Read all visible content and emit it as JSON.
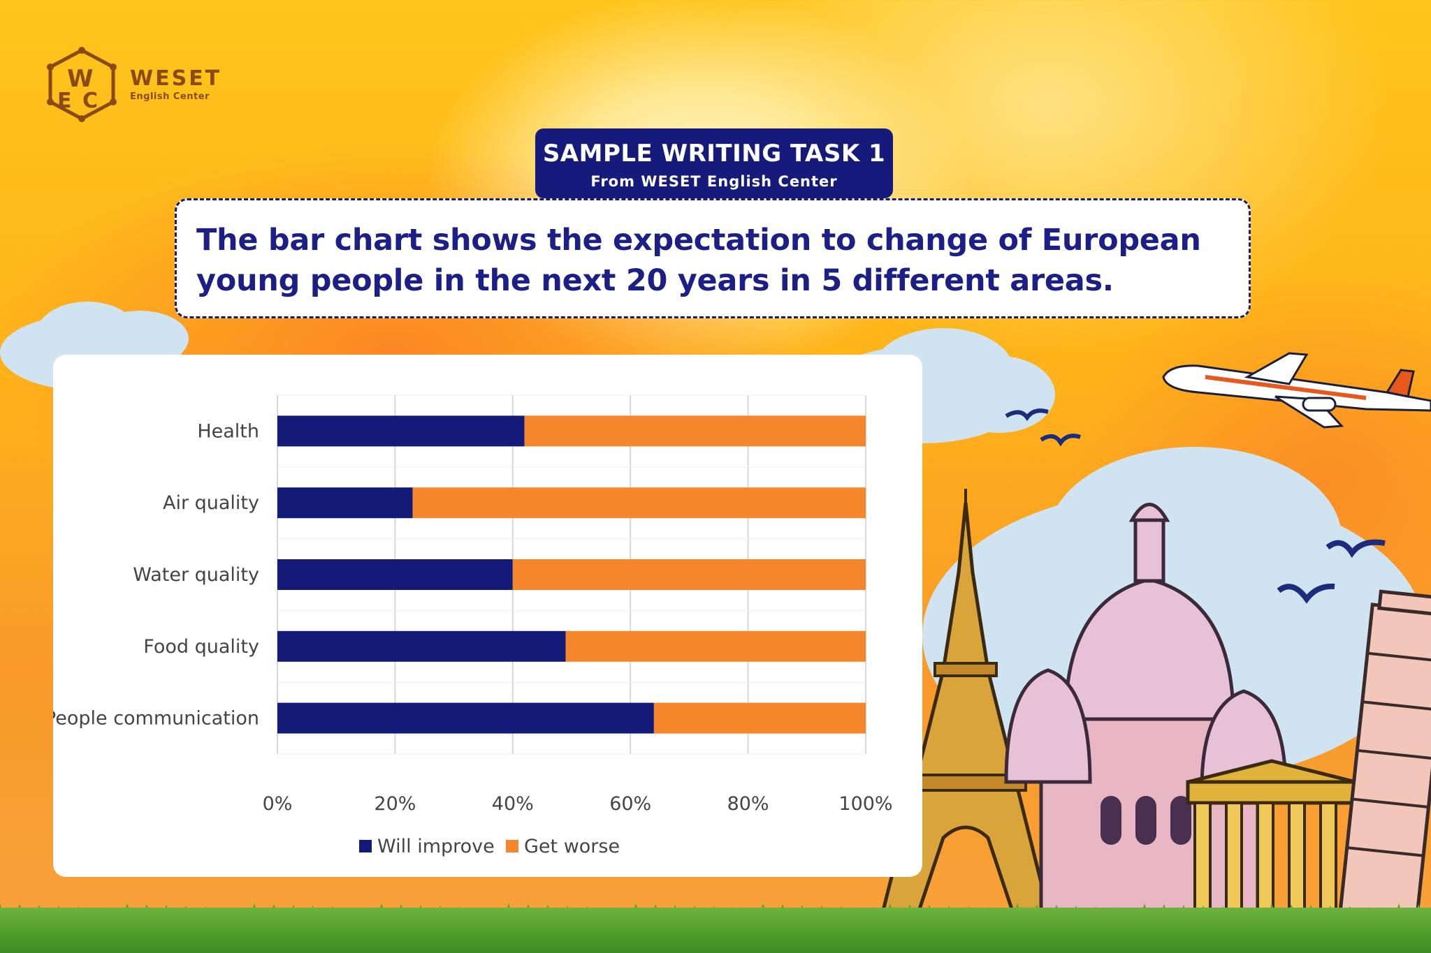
{
  "brand": {
    "name": "WESET",
    "subtitle": "English Center"
  },
  "badge": {
    "title": "SAMPLE WRITING TASK 1",
    "subtitle": "From WESET English Center"
  },
  "prompt": {
    "text": "The bar chart shows the expectation to change of European\nyoung people  in the next 20 years in 5 different areas."
  },
  "colors": {
    "will_improve": "#141a78",
    "get_worse": "#f5862b",
    "badge_bg": "#161a7a",
    "prompt_text": "#1b1f86"
  },
  "chart_data": {
    "type": "bar",
    "orientation": "horizontal",
    "stacked": true,
    "title": "",
    "xlabel": "",
    "ylabel": "",
    "categories": [
      "Health",
      "Air quality",
      "Water quality",
      "Food quality",
      "People communication"
    ],
    "series": [
      {
        "name": "Will improve",
        "values": [
          42,
          23,
          40,
          49,
          64
        ]
      },
      {
        "name": "Get worse",
        "values": [
          58,
          77,
          60,
          51,
          36
        ]
      }
    ],
    "x_ticks": [
      "0%",
      "20%",
      "40%",
      "60%",
      "80%",
      "100%"
    ],
    "xlim": [
      0,
      100
    ],
    "grid": "vertical",
    "legend": "bottom"
  },
  "illustration": {
    "items": [
      "cloud-icon",
      "airplane-icon",
      "bird-icon",
      "eiffel-tower-icon",
      "basilica-icon",
      "parthenon-icon",
      "leaning-tower-icon",
      "grass"
    ]
  }
}
